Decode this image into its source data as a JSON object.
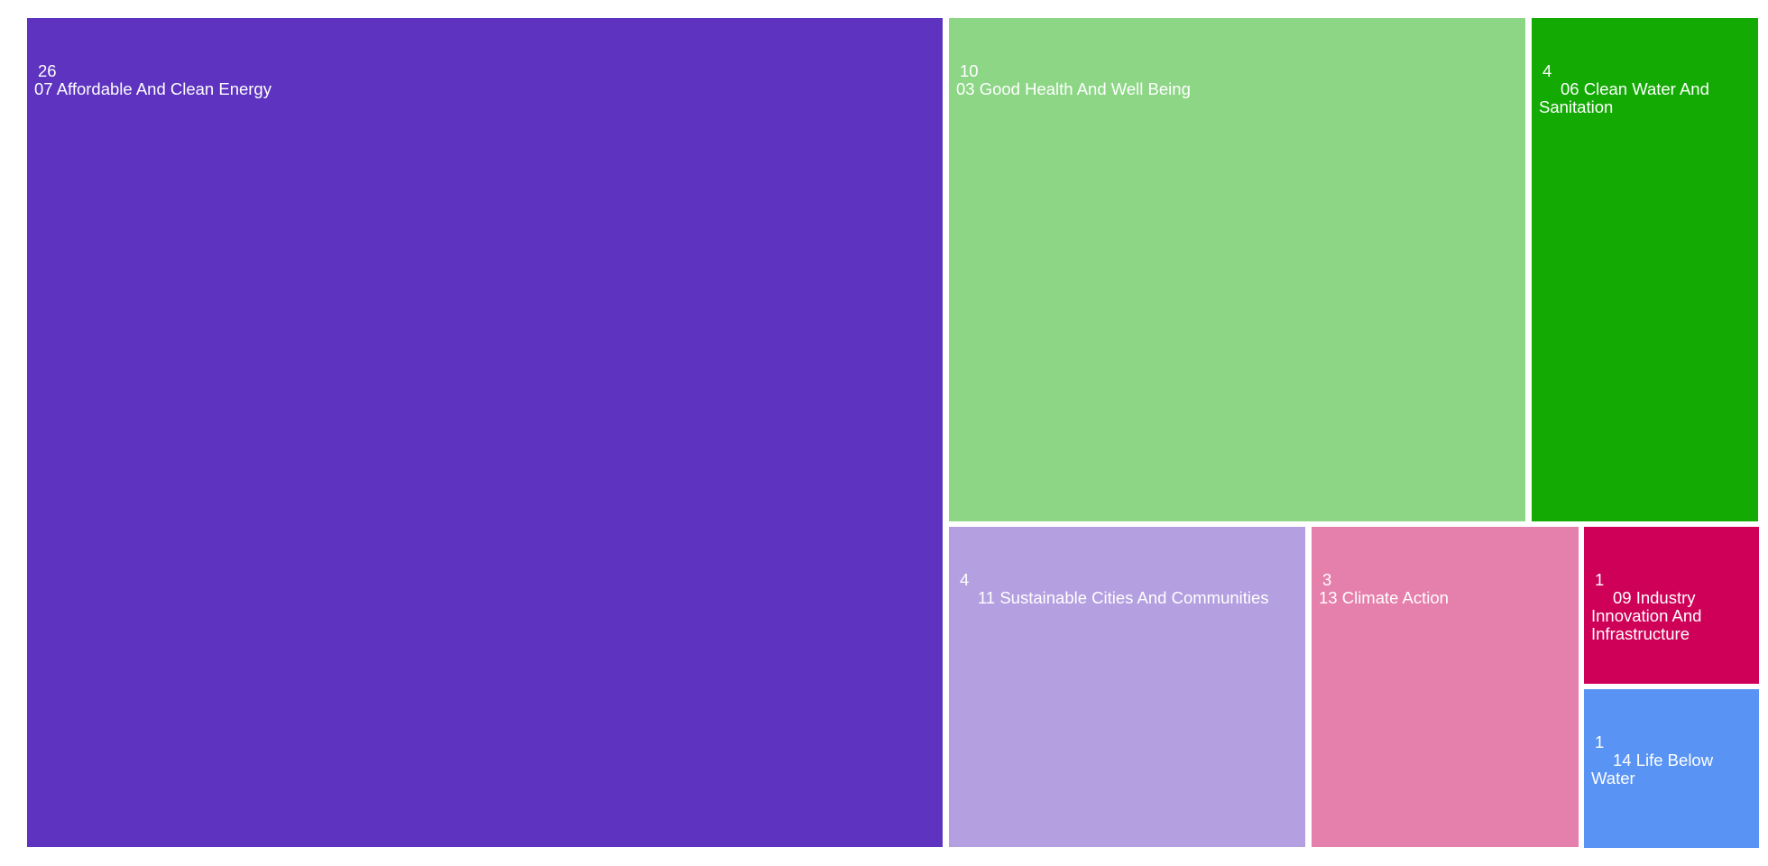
{
  "chart_data": {
    "type": "treemap",
    "items": [
      {
        "label": "07 Affordable And Clean Energy",
        "value": 26,
        "color": "#5d33bf"
      },
      {
        "label": "03 Good Health And Well Being",
        "value": 10,
        "color": "#8dd686"
      },
      {
        "label": "06 Clean Water And Sanitation",
        "value": 4,
        "color": "#13aa04"
      },
      {
        "label": "11 Sustainable Cities And Communities",
        "value": 4,
        "color": "#b49fe0"
      },
      {
        "label": "13 Climate Action",
        "value": 3,
        "color": "#e57fab"
      },
      {
        "label": "09 Industry Innovation And Infrastructure",
        "value": 1,
        "color": "#cf0057"
      },
      {
        "label": "14 Life Below Water",
        "value": 1,
        "color": "#5994f5"
      }
    ]
  }
}
